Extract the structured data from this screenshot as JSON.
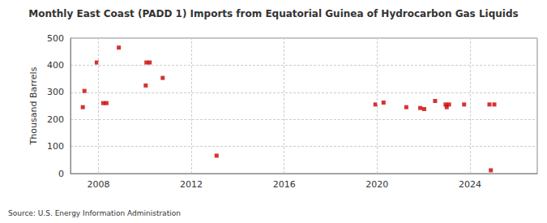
{
  "chart_data": {
    "type": "scatter",
    "title": "Monthly East Coast (PADD 1) Imports from Equatorial Guinea of Hydrocarbon Gas Liquids",
    "y_label": "Thousand Barrels",
    "source": "Source: U.S. Energy Information Administration",
    "x": [
      2007.33,
      2007.4,
      2007.93,
      2008.21,
      2008.35,
      2008.88,
      2010.04,
      2010.07,
      2010.21,
      2010.77,
      2013.09,
      2019.93,
      2020.28,
      2021.26,
      2021.86,
      2022.03,
      2022.5,
      2022.95,
      2023.0,
      2023.1,
      2023.75,
      2024.84,
      2024.9,
      2025.05
    ],
    "values": [
      245,
      305,
      410,
      260,
      260,
      465,
      325,
      410,
      410,
      353,
      66,
      255,
      262,
      245,
      242,
      238,
      268,
      255,
      245,
      255,
      255,
      255,
      12,
      255
    ],
    "color": "#cc0000",
    "marker": "square",
    "xlim": [
      2006.8,
      2026.9
    ],
    "xticks": [
      2008,
      2012,
      2016,
      2020,
      2024
    ],
    "ylim": [
      0,
      500
    ],
    "yticks": [
      0,
      100,
      200,
      300,
      400,
      500
    ],
    "grid": true
  }
}
